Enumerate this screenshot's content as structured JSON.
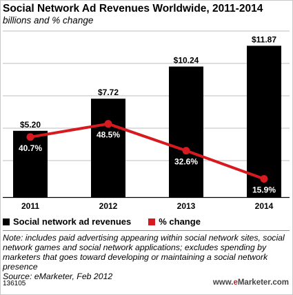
{
  "header": {
    "title": "Social Network Ad Revenues Worldwide, 2011-2014",
    "subtitle": "billions and % change"
  },
  "chart_data": {
    "type": "bar",
    "categories": [
      "2011",
      "2012",
      "2013",
      "2014"
    ],
    "series": [
      {
        "name": "Social network ad revenues",
        "type": "bar",
        "values": [
          5.2,
          7.72,
          10.24,
          11.87
        ],
        "labels": [
          "$5.20",
          "$7.72",
          "$10.24",
          "$11.87"
        ],
        "color": "#000000"
      },
      {
        "name": "% change",
        "type": "line",
        "values": [
          40.7,
          48.5,
          32.6,
          15.9
        ],
        "labels": [
          "40.7%",
          "48.5%",
          "32.6%",
          "15.9%"
        ],
        "color": "#d61a20"
      }
    ],
    "title": "Social Network Ad Revenues Worldwide, 2011-2014",
    "subtitle": "billions and % change",
    "xlabel": "",
    "ylabel": "",
    "grid": true,
    "legend": "bottom-left"
  },
  "legend": {
    "items": [
      {
        "label": "Social network ad revenues",
        "color": "#000000"
      },
      {
        "label": "% change",
        "color": "#d61a20"
      }
    ]
  },
  "notes": {
    "note": "Note: includes paid advertising appearing within social network sites, social network games and social network applications; excludes spending by marketers that goes toward developing or maintaining a social network presence",
    "source": "Source: eMarketer, Feb 2012"
  },
  "footer": {
    "id": "136105",
    "logo_prefix": "www.",
    "logo_brand": "e",
    "logo_suffix": "Marketer.com"
  }
}
